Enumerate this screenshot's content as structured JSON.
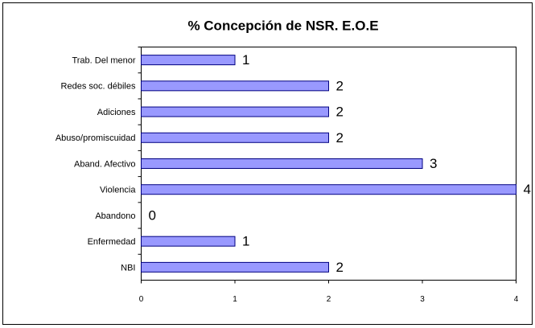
{
  "chart_data": {
    "type": "barh",
    "title": "% Concepción de NSR. E.O.E",
    "categories": [
      "Trab. Del menor",
      "Redes soc. débiles",
      "Adiciones",
      "Abuso/promiscuidad",
      "Aband. Afectivo",
      "Violencia",
      "Abandono",
      "Enfermedad",
      "NBI"
    ],
    "values": [
      1,
      2,
      2,
      2,
      3,
      4,
      0,
      1,
      2
    ],
    "color": "#9999ff",
    "xlim": [
      0,
      4
    ],
    "xticks": [
      0,
      1,
      2,
      3,
      4
    ],
    "grid": false
  }
}
